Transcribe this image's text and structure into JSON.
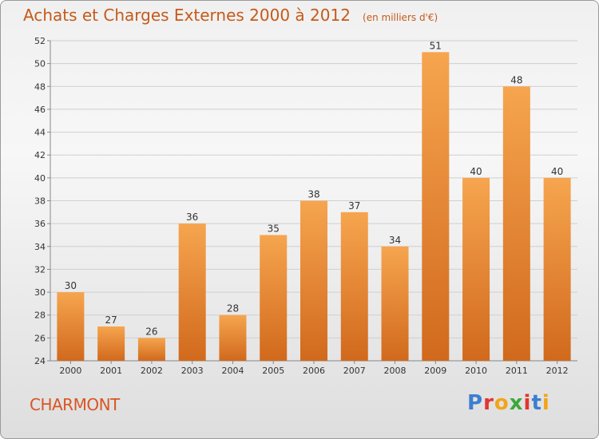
{
  "header": {
    "title": "Achats et Charges Externes 2000 à 2012",
    "unit": "(en milliers d'€)"
  },
  "footer": {
    "place": "CHARMONT",
    "logo_letters": [
      "P",
      "r",
      "o",
      "x",
      "i",
      "t",
      "i"
    ],
    "logo_colors": [
      "#3b7fd1",
      "#e3342f",
      "#f2a51a",
      "#3aa93a",
      "#e3342f",
      "#3b7fd1",
      "#f2a51a"
    ]
  },
  "chart_data": {
    "type": "bar",
    "categories": [
      "2000",
      "2001",
      "2002",
      "2003",
      "2004",
      "2005",
      "2006",
      "2007",
      "2008",
      "2009",
      "2010",
      "2011",
      "2012"
    ],
    "values": [
      30,
      27,
      26,
      36,
      28,
      35,
      38,
      37,
      34,
      51,
      40,
      48,
      40
    ],
    "ylim": [
      24,
      52
    ],
    "yticks": [
      24,
      26,
      28,
      30,
      32,
      34,
      36,
      38,
      40,
      42,
      44,
      46,
      48,
      50,
      52
    ],
    "grid": true,
    "bar_color_top": "#f6a54f",
    "bar_color_bottom": "#d1691c",
    "title": "Achats et Charges Externes 2000 à 2012",
    "xlabel": "",
    "ylabel": ""
  }
}
